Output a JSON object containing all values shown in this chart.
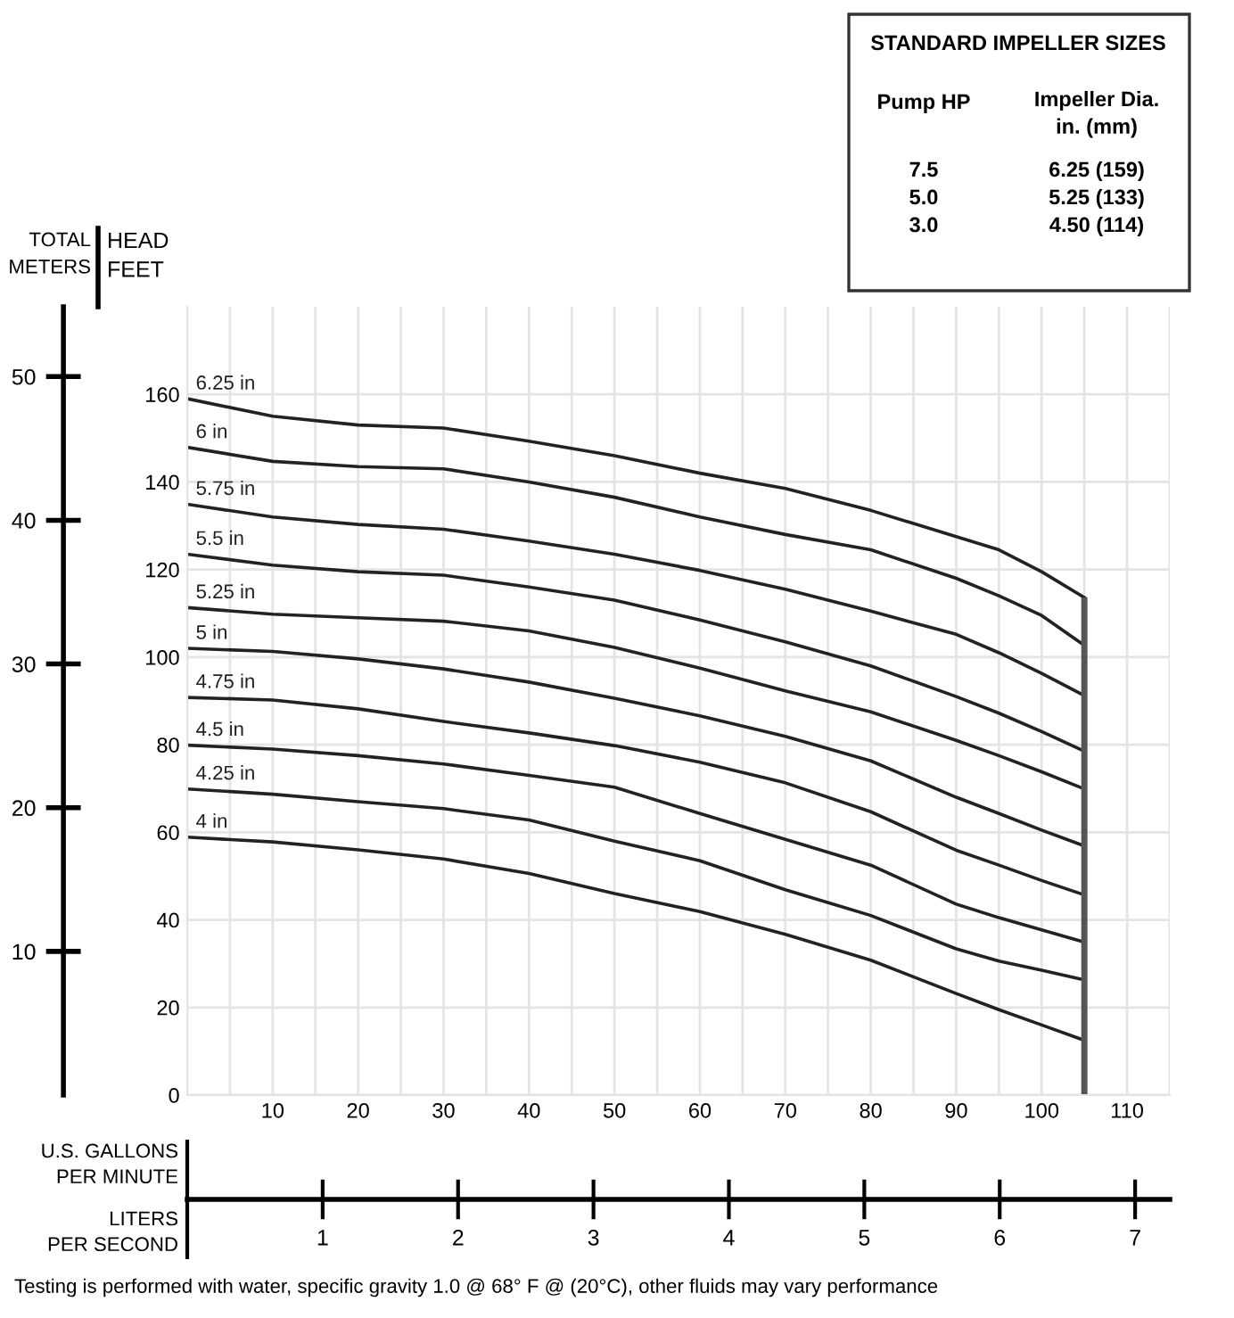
{
  "chart_data": {
    "type": "line",
    "x": [
      0,
      10,
      20,
      30,
      40,
      50,
      60,
      70,
      80,
      90,
      95,
      100,
      105
    ],
    "series": [
      {
        "name": "6.25 in",
        "color": "#222222",
        "values": [
          159,
          155,
          153,
          152.3,
          149.3,
          146,
          142,
          138.5,
          133.5,
          127.5,
          124.5,
          119.5,
          113.6
        ]
      },
      {
        "name": "6 in",
        "color": "#222222",
        "values": [
          147.9,
          144.7,
          143.5,
          143,
          140,
          136.5,
          132,
          128,
          124.5,
          118,
          114,
          109.5,
          102.7
        ]
      },
      {
        "name": "5.75 in",
        "color": "#222222",
        "values": [
          134.9,
          132,
          130.3,
          129.2,
          126.5,
          123.5,
          119.8,
          115.5,
          110.5,
          105.2,
          101,
          96.3,
          91.2
        ]
      },
      {
        "name": "5.5 in",
        "color": "#222222",
        "values": [
          123.5,
          121,
          119.5,
          118.7,
          116,
          113,
          108.5,
          103.5,
          98,
          91,
          87.2,
          83,
          78.5
        ]
      },
      {
        "name": "5.25 in",
        "color": "#222222",
        "values": [
          111.3,
          109.8,
          109,
          108.2,
          106,
          102.2,
          97.5,
          92.3,
          87.5,
          81,
          77.5,
          73.8,
          69.9
        ]
      },
      {
        "name": "5 in",
        "color": "#222222",
        "values": [
          102,
          101.3,
          99.6,
          97.3,
          94.3,
          90.6,
          86.6,
          81.9,
          76.3,
          68,
          64.3,
          60.5,
          56.9
        ]
      },
      {
        "name": "4.75 in",
        "color": "#222222",
        "values": [
          90.8,
          90.2,
          88.2,
          85.3,
          82.7,
          79.8,
          76,
          71.3,
          64.7,
          55.9,
          52.5,
          49,
          45.7
        ]
      },
      {
        "name": "4.5 in",
        "color": "#222222",
        "values": [
          79.9,
          79,
          77.5,
          75.6,
          73,
          70.3,
          64.3,
          58.4,
          52.5,
          43.6,
          40.5,
          37.7,
          34.9
        ]
      },
      {
        "name": "4.25 in",
        "color": "#222222",
        "values": [
          69.9,
          68.7,
          67,
          65.4,
          62.8,
          58,
          53.5,
          46.9,
          41,
          33.4,
          30.6,
          28.5,
          26.3
        ]
      },
      {
        "name": "4 in",
        "color": "#222222",
        "values": [
          58.9,
          57.8,
          56,
          53.9,
          50.6,
          46,
          41.9,
          36.7,
          30.8,
          23.2,
          19.5,
          16,
          12.5
        ]
      }
    ],
    "xlim": [
      0,
      115
    ],
    "ylim": [
      0,
      180
    ],
    "xticks": [
      {
        "value": 0,
        "label": null
      },
      {
        "value": 5,
        "label": null
      },
      10,
      {
        "value": 15,
        "label": null
      },
      20,
      {
        "value": 25,
        "label": null
      },
      30,
      {
        "value": 35,
        "label": null
      },
      40,
      {
        "value": 45,
        "label": null
      },
      50,
      {
        "value": 55,
        "label": null
      },
      60,
      {
        "value": 65,
        "label": null
      },
      70,
      {
        "value": 75,
        "label": null
      },
      80,
      {
        "value": 85,
        "label": null
      },
      90,
      {
        "value": 95,
        "label": null
      },
      100,
      {
        "value": 105,
        "label": null
      },
      110,
      {
        "value": 115,
        "label": null
      }
    ],
    "yticks": [
      0,
      20,
      40,
      60,
      80,
      100,
      120,
      140,
      160
    ],
    "y2lim": [
      0,
      54.86
    ],
    "y2ticks": [
      10,
      20,
      30,
      40,
      50
    ],
    "x2lim": [
      0,
      7.256
    ],
    "x2ticks": [
      1,
      2,
      3,
      4,
      5,
      6,
      7
    ],
    "xlabel": "U.S. GALLONS\nPER MINUTE",
    "x2label": "LITERS\nPER SECOND",
    "ylabel": "HEAD\nFEET",
    "y2label": "TOTAL\nMETERS",
    "ref_lines": [
      {
        "axis": "x",
        "value": 105,
        "color": "#555555"
      }
    ],
    "grid": true,
    "annotations": [
      "STANDARD IMPELLER SIZES",
      "Pump HP",
      "Impeller Dia.\nin. (mm)",
      "7.5",
      "6.25 (159)",
      "5.0",
      "5.25 (133)",
      "3.0",
      "4.50 (114)",
      "Testing is performed with water, specific gravity 1.0 @ 68° F @ (20°C), other fluids may vary performance"
    ]
  }
}
